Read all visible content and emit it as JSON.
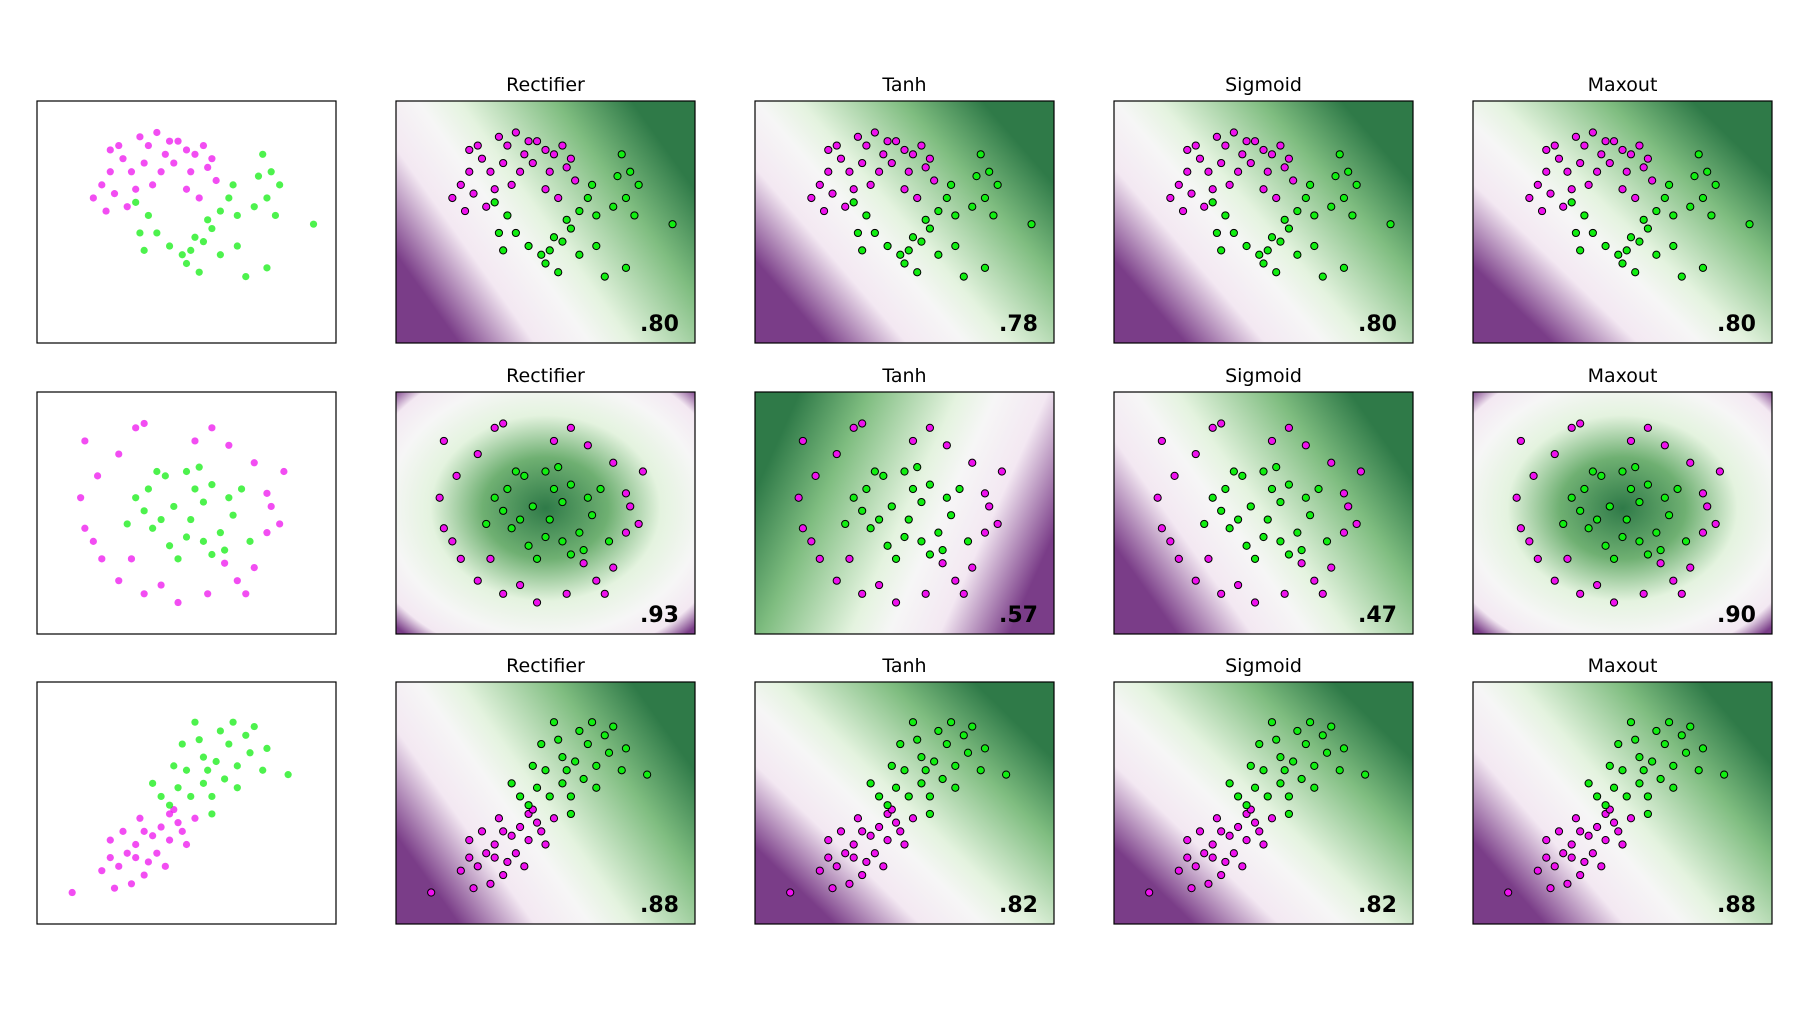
{
  "colors": {
    "class_a": "#ee11ee",
    "class_b": "#11ee11",
    "purple_dark": "#7a3d88",
    "purple_light": "#f3e8f2",
    "neutral": "#f6f6f6",
    "green_light": "#e4f3df",
    "green_dark": "#2f7a48"
  },
  "chart_data": {
    "type": "scatter",
    "layout": "3 rows x 5 columns grid",
    "columns": [
      "",
      "Rectifier",
      "Tanh",
      "Sigmoid",
      "Maxout"
    ],
    "rows": [
      {
        "dataset": "moons",
        "boundary_shape": "curved",
        "scores": [
          ".80",
          ".78",
          ".80",
          ".80"
        ],
        "contours": [
          {
            "gradient_deg": 330,
            "center": [
              0.5,
              0.5
            ]
          },
          {
            "gradient_deg": 325,
            "center": [
              0.5,
              0.45
            ]
          },
          {
            "gradient_deg": 325,
            "center": [
              0.5,
              0.5
            ]
          },
          {
            "gradient_deg": 320,
            "center": [
              0.5,
              0.52
            ]
          }
        ],
        "points": {
          "class_a": [
            [
              -0.9,
              0.85
            ],
            [
              -0.8,
              0.9
            ],
            [
              -0.75,
              0.75
            ],
            [
              -0.55,
              1.0
            ],
            [
              -0.45,
              0.9
            ],
            [
              -0.35,
              1.05
            ],
            [
              -0.25,
              0.8
            ],
            [
              -0.1,
              0.95
            ],
            [
              0.0,
              0.85
            ],
            [
              0.1,
              0.8
            ],
            [
              0.2,
              0.9
            ],
            [
              -0.65,
              0.6
            ],
            [
              -0.9,
              0.6
            ],
            [
              -1.0,
              0.45
            ],
            [
              -0.85,
              0.35
            ],
            [
              -0.6,
              0.4
            ],
            [
              -0.3,
              0.6
            ],
            [
              -0.15,
              0.7
            ],
            [
              0.05,
              0.6
            ],
            [
              0.25,
              0.65
            ],
            [
              -0.4,
              0.45
            ],
            [
              0.35,
              0.5
            ],
            [
              -0.7,
              0.2
            ],
            [
              -1.1,
              0.3
            ],
            [
              0.15,
              0.3
            ],
            [
              -0.2,
              0.95
            ],
            [
              -0.5,
              0.7
            ],
            [
              -0.95,
              0.15
            ],
            [
              0.0,
              0.4
            ],
            [
              0.3,
              0.75
            ]
          ],
          "class_b": [
            [
              0.9,
              0.8
            ],
            [
              1.0,
              0.6
            ],
            [
              1.1,
              0.45
            ],
            [
              0.95,
              0.3
            ],
            [
              0.8,
              0.2
            ],
            [
              0.6,
              0.1
            ],
            [
              0.5,
              0.3
            ],
            [
              0.4,
              0.15
            ],
            [
              0.3,
              -0.05
            ],
            [
              0.2,
              -0.2
            ],
            [
              0.05,
              -0.3
            ],
            [
              -0.05,
              -0.35
            ],
            [
              -0.2,
              -0.25
            ],
            [
              -0.35,
              -0.1
            ],
            [
              -0.45,
              0.1
            ],
            [
              -0.55,
              -0.1
            ],
            [
              -0.5,
              -0.3
            ],
            [
              0.0,
              -0.45
            ],
            [
              0.15,
              -0.55
            ],
            [
              0.4,
              -0.35
            ],
            [
              0.6,
              -0.25
            ],
            [
              0.95,
              -0.5
            ],
            [
              1.5,
              0.0
            ],
            [
              0.7,
              -0.6
            ],
            [
              1.05,
              0.1
            ],
            [
              0.85,
              0.55
            ],
            [
              -0.6,
              0.25
            ],
            [
              0.25,
              0.05
            ],
            [
              0.1,
              -0.15
            ],
            [
              0.55,
              0.45
            ]
          ]
        }
      },
      {
        "dataset": "circles",
        "boundary_shape": "radial",
        "scores": [
          ".93",
          ".57",
          ".47",
          ".90"
        ],
        "contours": [
          {
            "gradient_deg": 0,
            "center": [
              0.5,
              0.48
            ]
          },
          {
            "gradient_deg": 200,
            "center": [
              0.4,
              0.45
            ]
          },
          {
            "gradient_deg": 330,
            "center": [
              0.55,
              0.5
            ]
          },
          {
            "gradient_deg": 0,
            "center": [
              0.5,
              0.48
            ]
          }
        ],
        "points": {
          "class_a": [
            [
              -0.6,
              1.0
            ],
            [
              -0.5,
              1.05
            ],
            [
              0.3,
              1.0
            ],
            [
              -1.2,
              0.85
            ],
            [
              0.8,
              0.6
            ],
            [
              0.95,
              0.25
            ],
            [
              1.15,
              0.5
            ],
            [
              1.1,
              -0.1
            ],
            [
              0.95,
              -0.2
            ],
            [
              0.8,
              -0.6
            ],
            [
              0.6,
              -0.75
            ],
            [
              0.25,
              -0.9
            ],
            [
              -0.1,
              -1.0
            ],
            [
              -0.5,
              -0.9
            ],
            [
              -0.8,
              -0.75
            ],
            [
              -1.0,
              -0.5
            ],
            [
              -1.2,
              -0.15
            ],
            [
              -1.25,
              0.2
            ],
            [
              -1.05,
              0.45
            ],
            [
              -0.8,
              0.7
            ],
            [
              0.1,
              0.85
            ],
            [
              0.5,
              0.8
            ],
            [
              -0.3,
              -0.8
            ],
            [
              0.45,
              -0.55
            ],
            [
              -1.1,
              -0.3
            ],
            [
              0.7,
              -0.9
            ],
            [
              -0.65,
              -0.5
            ],
            [
              1.0,
              0.1
            ]
          ],
          "class_b": [
            [
              -0.35,
              0.5
            ],
            [
              -0.25,
              0.45
            ],
            [
              0.0,
              0.5
            ],
            [
              0.15,
              0.55
            ],
            [
              0.3,
              0.35
            ],
            [
              0.5,
              0.2
            ],
            [
              0.55,
              0.0
            ],
            [
              0.4,
              -0.2
            ],
            [
              0.2,
              -0.3
            ],
            [
              0.0,
              -0.25
            ],
            [
              -0.2,
              -0.35
            ],
            [
              -0.4,
              -0.15
            ],
            [
              -0.5,
              0.05
            ],
            [
              -0.6,
              0.2
            ],
            [
              -0.15,
              0.1
            ],
            [
              0.05,
              -0.05
            ],
            [
              0.2,
              0.15
            ],
            [
              -0.3,
              -0.05
            ],
            [
              0.65,
              0.3
            ],
            [
              -0.7,
              -0.1
            ],
            [
              0.3,
              -0.45
            ],
            [
              -0.45,
              0.3
            ],
            [
              0.1,
              0.3
            ],
            [
              0.45,
              -0.4
            ],
            [
              -0.1,
              -0.5
            ],
            [
              0.75,
              -0.3
            ]
          ]
        }
      },
      {
        "dataset": "linearly separable",
        "boundary_shape": "linear",
        "scores": [
          ".88",
          ".82",
          ".82",
          ".88"
        ],
        "contours": [
          {
            "gradient_deg": 330,
            "center": [
              0.55,
              0.55
            ]
          },
          {
            "gradient_deg": 320,
            "center": [
              0.52,
              0.55
            ]
          },
          {
            "gradient_deg": 320,
            "center": [
              0.55,
              0.55
            ]
          },
          {
            "gradient_deg": 325,
            "center": [
              0.55,
              0.58
            ]
          }
        ],
        "points": {
          "class_a": [
            [
              -0.9,
              -0.6
            ],
            [
              -0.8,
              -0.7
            ],
            [
              -0.7,
              -0.55
            ],
            [
              -0.6,
              -0.45
            ],
            [
              -0.5,
              -0.3
            ],
            [
              -0.4,
              -0.35
            ],
            [
              -0.3,
              -0.25
            ],
            [
              -0.2,
              -0.1
            ],
            [
              -0.1,
              -0.2
            ],
            [
              -0.5,
              -0.8
            ],
            [
              -0.65,
              -0.9
            ],
            [
              -0.85,
              -0.95
            ],
            [
              -1.0,
              -0.75
            ],
            [
              -0.35,
              -0.55
            ],
            [
              -0.2,
              -0.4
            ],
            [
              -0.05,
              -0.3
            ],
            [
              0.1,
              -0.15
            ],
            [
              -0.55,
              -0.15
            ],
            [
              -0.75,
              -0.3
            ],
            [
              -1.35,
              -1.0
            ],
            [
              -0.45,
              -0.65
            ],
            [
              -0.25,
              -0.7
            ],
            [
              0.0,
              -0.45
            ],
            [
              -0.6,
              -0.6
            ],
            [
              -0.9,
              -0.4
            ],
            [
              -0.15,
              -0.05
            ]
          ],
          "class_b": [
            [
              0.0,
              0.4
            ],
            [
              0.2,
              0.55
            ],
            [
              0.35,
              0.5
            ],
            [
              0.5,
              0.7
            ],
            [
              0.6,
              0.45
            ],
            [
              0.75,
              0.6
            ],
            [
              0.2,
              0.25
            ],
            [
              0.05,
              0.1
            ],
            [
              -0.1,
              0.2
            ],
            [
              -0.2,
              0.0
            ],
            [
              0.3,
              0.1
            ],
            [
              0.45,
              0.3
            ],
            [
              0.6,
              0.2
            ],
            [
              0.15,
              0.75
            ],
            [
              -0.05,
              0.7
            ],
            [
              0.4,
              0.85
            ],
            [
              0.7,
              0.8
            ],
            [
              0.9,
              0.4
            ],
            [
              1.2,
              0.35
            ],
            [
              0.3,
              -0.1
            ],
            [
              -0.3,
              0.1
            ],
            [
              -0.4,
              0.25
            ],
            [
              0.1,
              0.95
            ],
            [
              0.55,
              0.95
            ],
            [
              0.8,
              0.9
            ],
            [
              0.95,
              0.65
            ],
            [
              0.25,
              0.4
            ],
            [
              -0.15,
              0.45
            ]
          ]
        }
      }
    ],
    "xlim": [
      -1.6,
      1.6
    ],
    "ylim": [
      -1.2,
      1.25
    ],
    "ticks": "none"
  }
}
